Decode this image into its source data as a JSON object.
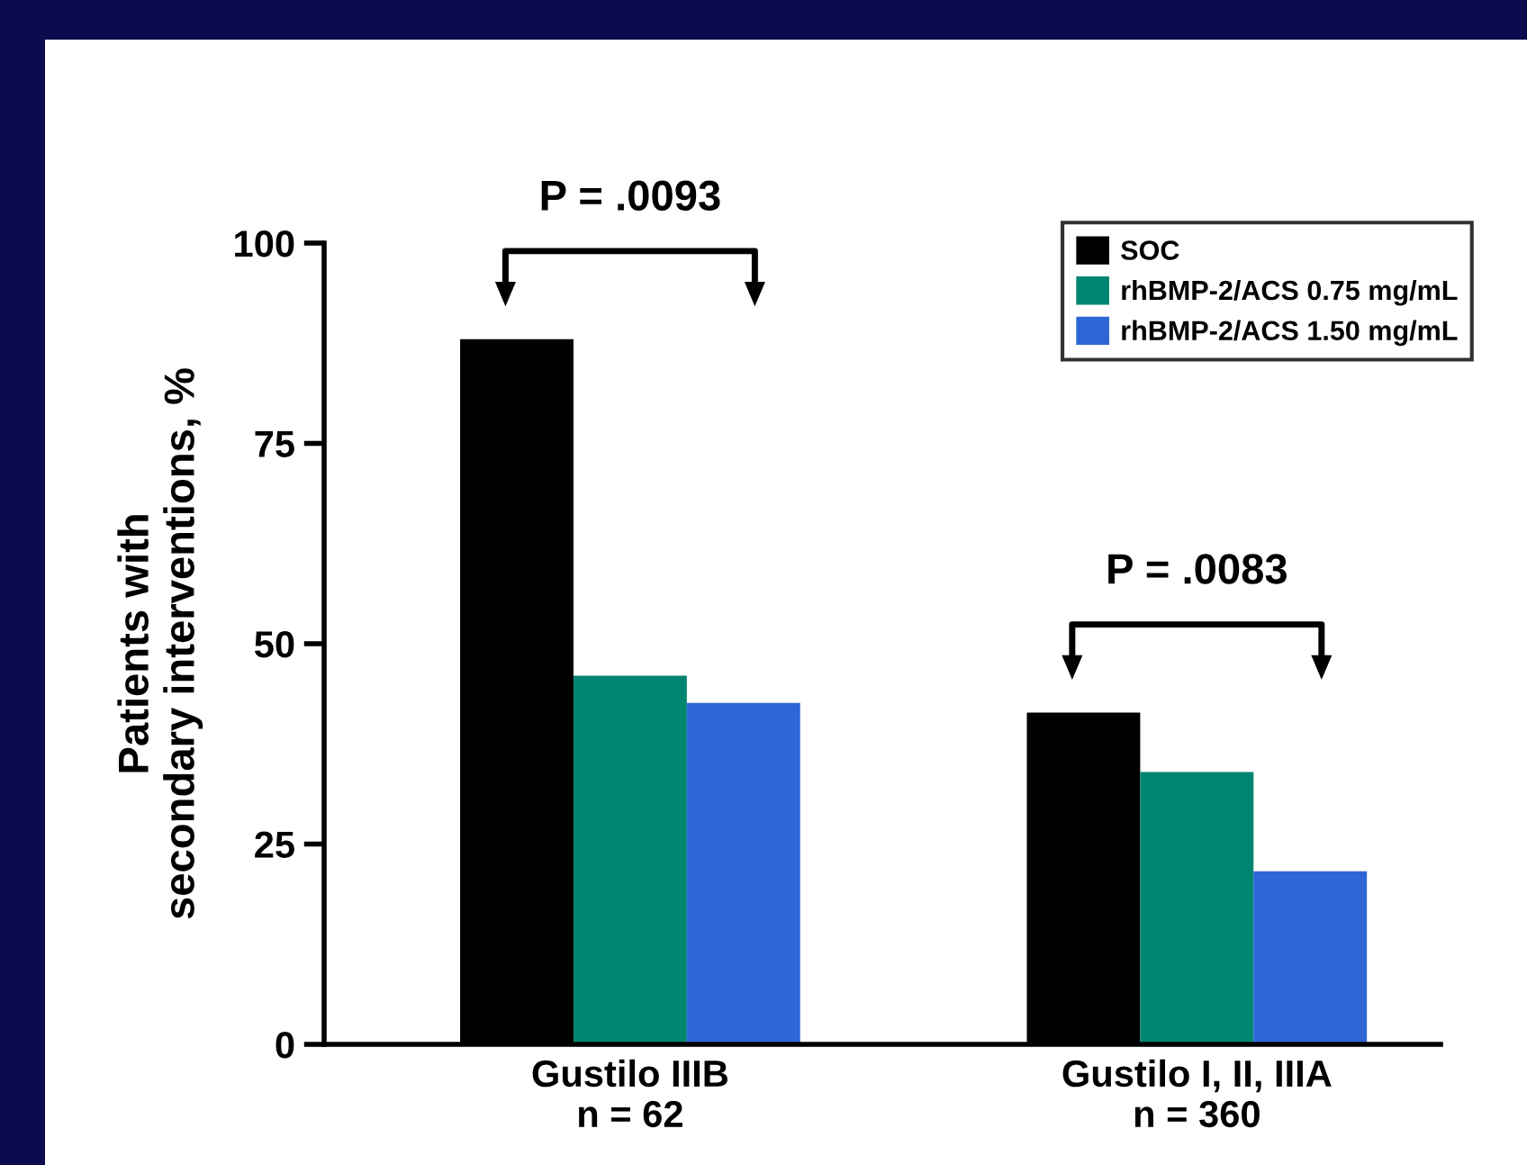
{
  "chart_data": {
    "type": "bar",
    "categories": [
      "Gustilo IIIB\nn = 62",
      "Gustilo I, II, IIIA\nn = 360"
    ],
    "series": [
      {
        "name": "SOC",
        "color": "#000000",
        "values": [
          88,
          41.4
        ]
      },
      {
        "name": "rhBMP-2/ACS 0.75 mg/mL",
        "color": "#008570",
        "values": [
          46,
          34
        ]
      },
      {
        "name": "rhBMP-2/ACS 1.50 mg/mL",
        "color": "#2f66d6",
        "values": [
          42.6,
          21.6
        ]
      }
    ],
    "ylabel": "Patients with\nsecondary interventions, %",
    "ylim": [
      0,
      100
    ],
    "yticks": [
      0,
      25,
      50,
      75,
      100
    ],
    "annotations": [
      "P = .0093",
      "P = .0083"
    ],
    "grid": false,
    "legend": "top right"
  }
}
